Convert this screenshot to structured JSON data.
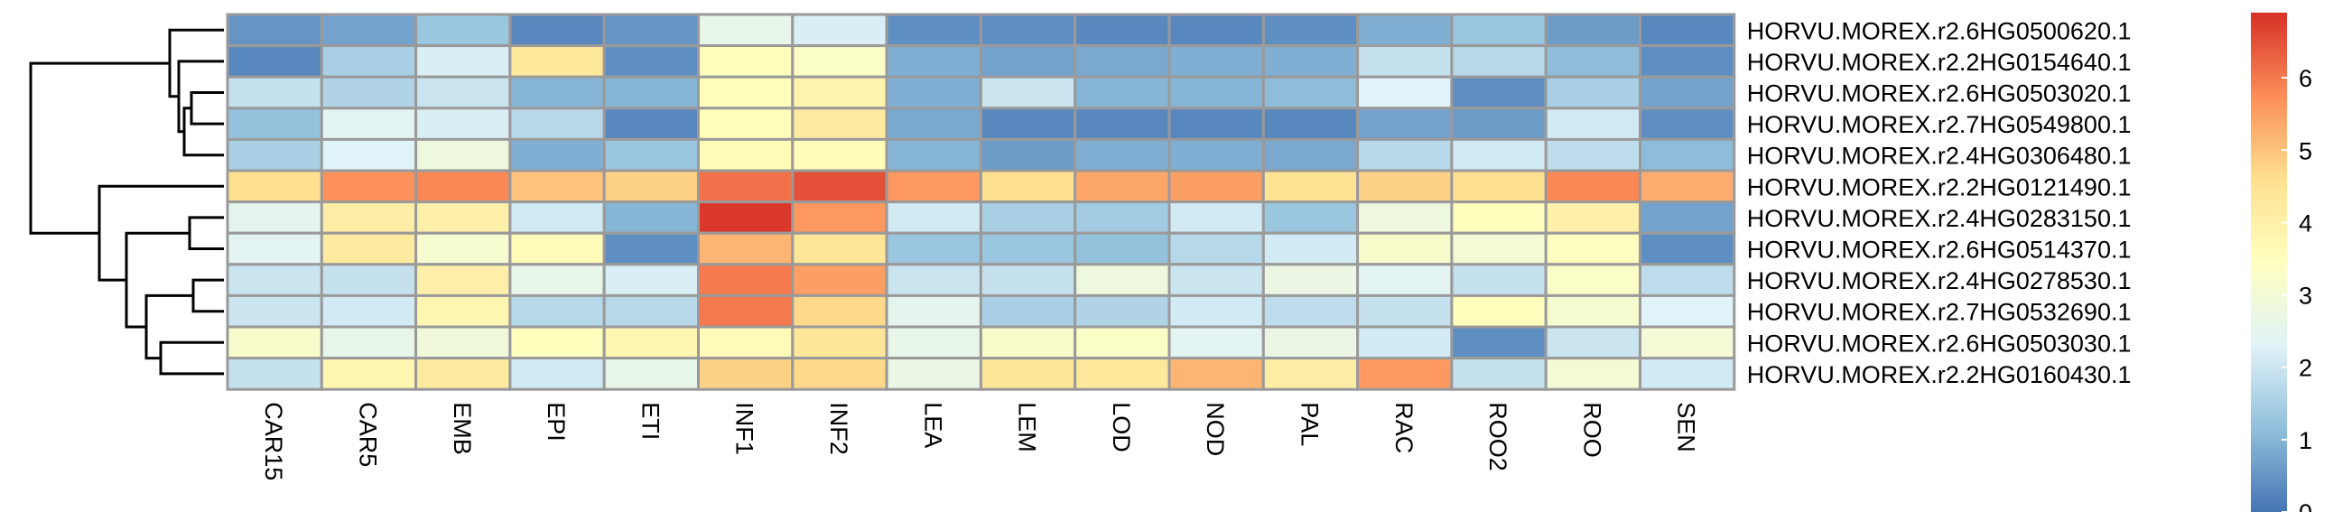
{
  "chart_data": {
    "type": "heatmap",
    "title": "",
    "xlabel": "",
    "ylabel": "",
    "columns": [
      "CAR15",
      "CAR5",
      "EMB",
      "EPI",
      "ETI",
      "INF1",
      "INF2",
      "LEA",
      "LEM",
      "LOD",
      "NOD",
      "PAL",
      "RAC",
      "ROO2",
      "ROO",
      "SEN"
    ],
    "rows": [
      "HORVU.MOREX.r2.6HG0500620.1",
      "HORVU.MOREX.r2.2HG0154640.1",
      "HORVU.MOREX.r2.6HG0503020.1",
      "HORVU.MOREX.r2.7HG0549800.1",
      "HORVU.MOREX.r2.4HG0306480.1",
      "HORVU.MOREX.r2.2HG0121490.1",
      "HORVU.MOREX.r2.4HG0283150.1",
      "HORVU.MOREX.r2.6HG0514370.1",
      "HORVU.MOREX.r2.4HG0278530.1",
      "HORVU.MOREX.r2.7HG0532690.1",
      "HORVU.MOREX.r2.6HG0503030.1",
      "HORVU.MOREX.r2.2HG0160430.1"
    ],
    "values": [
      [
        0.5,
        0.7,
        1.3,
        0.3,
        0.5,
        2.6,
        2.2,
        0.4,
        0.4,
        0.3,
        0.3,
        0.4,
        0.9,
        1.3,
        0.6,
        0.3
      ],
      [
        0.3,
        1.5,
        2.2,
        4.3,
        0.4,
        3.5,
        3.3,
        0.9,
        0.7,
        0.8,
        0.9,
        0.9,
        1.9,
        1.7,
        1.1,
        0.4
      ],
      [
        1.9,
        1.6,
        2.0,
        1.0,
        1.0,
        3.5,
        3.9,
        0.9,
        2.0,
        1.0,
        1.0,
        1.1,
        2.3,
        0.4,
        1.5,
        0.7
      ],
      [
        1.2,
        2.4,
        2.2,
        1.7,
        0.3,
        3.5,
        4.2,
        0.8,
        0.3,
        0.3,
        0.3,
        0.3,
        0.7,
        0.6,
        2.1,
        0.4
      ],
      [
        1.5,
        2.3,
        2.8,
        0.9,
        1.3,
        3.6,
        3.6,
        1.0,
        0.6,
        0.9,
        0.9,
        0.8,
        1.7,
        2.1,
        1.8,
        1.1
      ],
      [
        4.6,
        5.7,
        5.8,
        5.0,
        4.8,
        6.1,
        6.5,
        5.6,
        4.6,
        5.4,
        5.5,
        4.5,
        4.8,
        4.6,
        5.8,
        5.3
      ],
      [
        2.5,
        4.1,
        4.0,
        2.1,
        1.0,
        6.8,
        5.6,
        2.1,
        1.5,
        1.4,
        2.1,
        1.3,
        2.8,
        3.5,
        4.0,
        0.7
      ],
      [
        2.4,
        4.2,
        3.1,
        3.6,
        0.4,
        5.2,
        4.4,
        1.3,
        1.3,
        1.2,
        1.7,
        2.1,
        3.2,
        3.0,
        3.4,
        0.4
      ],
      [
        2.0,
        1.9,
        4.0,
        2.6,
        2.2,
        6.0,
        5.5,
        2.0,
        1.9,
        2.8,
        2.0,
        2.7,
        2.4,
        1.9,
        3.3,
        1.8
      ],
      [
        2.0,
        2.1,
        3.8,
        1.7,
        1.7,
        6.0,
        4.7,
        2.5,
        1.5,
        1.6,
        2.1,
        1.8,
        1.9,
        3.5,
        3.1,
        2.3
      ],
      [
        3.2,
        2.6,
        2.9,
        3.5,
        3.8,
        3.6,
        4.4,
        2.6,
        3.2,
        3.3,
        2.4,
        2.7,
        2.1,
        0.4,
        2.0,
        3.0
      ],
      [
        1.9,
        3.8,
        4.2,
        2.1,
        2.6,
        4.8,
        4.7,
        2.7,
        4.4,
        4.3,
        5.2,
        4.1,
        5.6,
        1.9,
        3.0,
        2.1
      ]
    ],
    "colorbar": {
      "ticks": [
        0,
        1,
        2,
        3,
        4,
        5,
        6
      ],
      "min": 0,
      "max": 6.9,
      "colors": [
        "#4575B4",
        "#91BFDB",
        "#E0F3F8",
        "#FFFFBF",
        "#FEE090",
        "#FC8D59",
        "#D73027"
      ]
    },
    "dendrogram": "rows"
  }
}
